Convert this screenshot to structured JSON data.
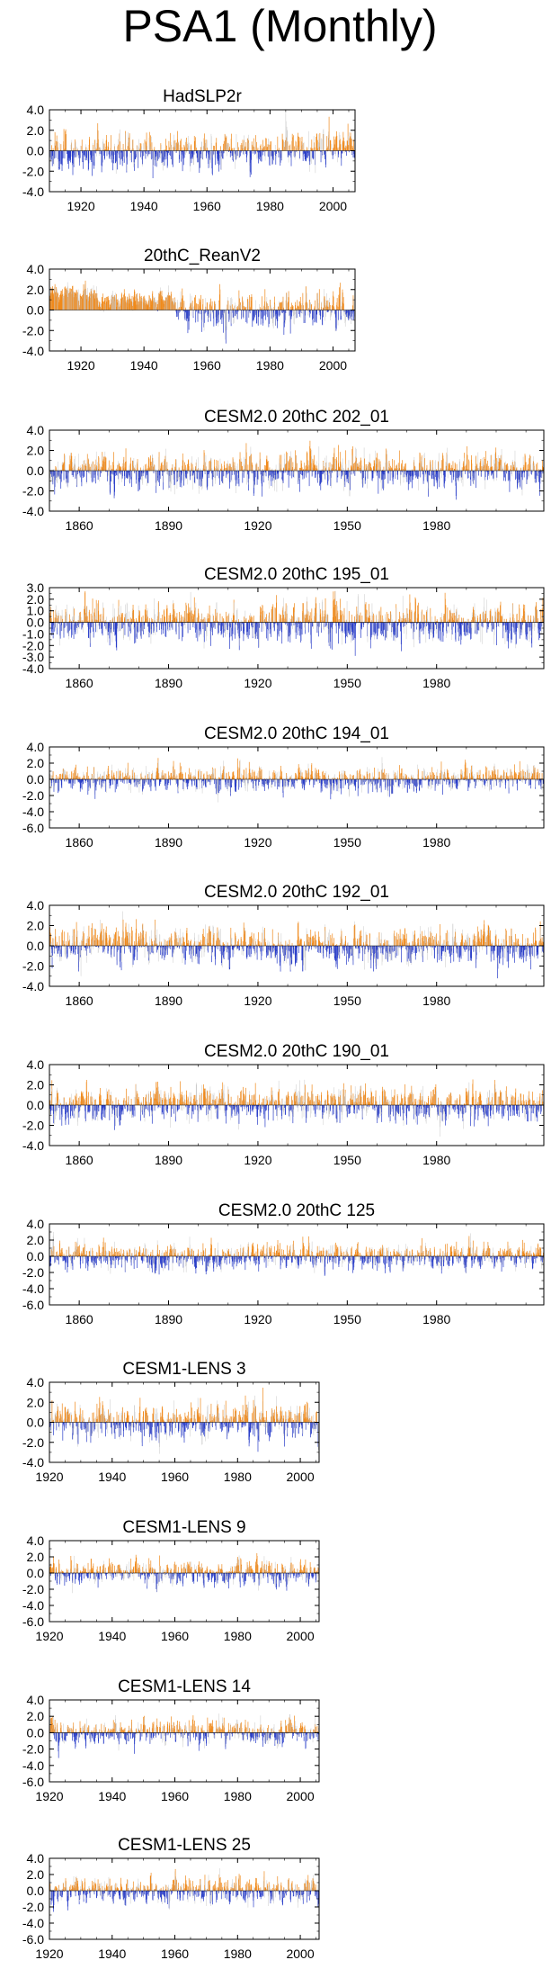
{
  "page_title": "PSA1 (Monthly)",
  "colors": {
    "positive": "#f08a1c",
    "negative": "#2b3fc9",
    "faint": "#c8c8c8",
    "axis": "#000000"
  },
  "chart_data": [
    {
      "type": "bar",
      "title": "HadSLP2r",
      "x_start": 1910,
      "x_end": 2007,
      "xticks": [
        1920,
        1940,
        1960,
        1980,
        2000
      ],
      "ylim": [
        -4,
        4
      ],
      "yticks": [
        "4.0",
        "2.0",
        "0.0",
        "-2.0",
        "-4.0"
      ],
      "positive_color": "#f08a1c",
      "negative_color": "#2b3fc9",
      "seed": 11,
      "amp": 1.0
    },
    {
      "type": "bar",
      "title": "20thC_ReanV2",
      "x_start": 1910,
      "x_end": 2007,
      "xticks": [
        1920,
        1940,
        1960,
        1980,
        2000
      ],
      "ylim": [
        -4,
        4
      ],
      "yticks": [
        "4.0",
        "2.0",
        "0.0",
        "-2.0",
        "-4.0"
      ],
      "positive_color": "#f08a1c",
      "negative_color": "#2b3fc9",
      "seed": 23,
      "amp": 1.0,
      "early_offset": 1.3
    },
    {
      "type": "bar",
      "title": "CESM2.0 20thC 202_01",
      "x_start": 1850,
      "x_end": 2016,
      "xticks": [
        1860,
        1890,
        1920,
        1950,
        1980
      ],
      "ylim": [
        -4,
        4
      ],
      "yticks": [
        "4.0",
        "2.0",
        "0.0",
        "-2.0",
        "-4.0"
      ],
      "positive_color": "#f08a1c",
      "negative_color": "#2b3fc9",
      "seed": 37,
      "amp": 1.0
    },
    {
      "type": "bar",
      "title": "CESM2.0 20thC 195_01",
      "x_start": 1850,
      "x_end": 2016,
      "xticks": [
        1860,
        1890,
        1920,
        1950,
        1980
      ],
      "ylim": [
        -4,
        3
      ],
      "yticks": [
        "3.0",
        "2.0",
        "1.0",
        "0.0",
        "-1.0",
        "-2.0",
        "-3.0",
        "-4.0"
      ],
      "positive_color": "#f08a1c",
      "negative_color": "#2b3fc9",
      "seed": 41,
      "amp": 1.0
    },
    {
      "type": "bar",
      "title": "CESM2.0 20thC 194_01",
      "x_start": 1850,
      "x_end": 2016,
      "xticks": [
        1860,
        1890,
        1920,
        1950,
        1980
      ],
      "ylim": [
        -6,
        4
      ],
      "yticks": [
        "4.0",
        "2.0",
        "0.0",
        "-2.0",
        "-4.0",
        "-6.0"
      ],
      "positive_color": "#f08a1c",
      "negative_color": "#2b3fc9",
      "seed": 53,
      "amp": 0.9
    },
    {
      "type": "bar",
      "title": "CESM2.0 20thC 192_01",
      "x_start": 1850,
      "x_end": 2016,
      "xticks": [
        1860,
        1890,
        1920,
        1950,
        1980
      ],
      "ylim": [
        -4,
        4
      ],
      "yticks": [
        "4.0",
        "2.0",
        "0.0",
        "-2.0",
        "-4.0"
      ],
      "positive_color": "#f08a1c",
      "negative_color": "#2b3fc9",
      "seed": 67,
      "amp": 1.0
    },
    {
      "type": "bar",
      "title": "CESM2.0 20thC 190_01",
      "x_start": 1850,
      "x_end": 2016,
      "xticks": [
        1860,
        1890,
        1920,
        1950,
        1980
      ],
      "ylim": [
        -4,
        4
      ],
      "yticks": [
        "4.0",
        "2.0",
        "0.0",
        "-2.0",
        "-4.0"
      ],
      "positive_color": "#f08a1c",
      "negative_color": "#2b3fc9",
      "seed": 71,
      "amp": 1.0
    },
    {
      "type": "bar",
      "title": "CESM2.0 20thC 125",
      "x_start": 1850,
      "x_end": 2016,
      "xticks": [
        1860,
        1890,
        1920,
        1950,
        1980
      ],
      "ylim": [
        -6,
        4
      ],
      "yticks": [
        "4.0",
        "2.0",
        "0.0",
        "-2.0",
        "-4.0",
        "-6.0"
      ],
      "positive_color": "#f08a1c",
      "negative_color": "#2b3fc9",
      "seed": 83,
      "amp": 0.9
    },
    {
      "type": "bar",
      "title": "CESM1-LENS 3",
      "x_start": 1920,
      "x_end": 2006,
      "xticks": [
        1920,
        1940,
        1960,
        1980,
        2000
      ],
      "ylim": [
        -4,
        4
      ],
      "yticks": [
        "4.0",
        "2.0",
        "0.0",
        "-2.0",
        "-4.0"
      ],
      "positive_color": "#f08a1c",
      "negative_color": "#2b3fc9",
      "seed": 97,
      "amp": 1.05
    },
    {
      "type": "bar",
      "title": "CESM1-LENS 9",
      "x_start": 1920,
      "x_end": 2006,
      "xticks": [
        1920,
        1940,
        1960,
        1980,
        2000
      ],
      "ylim": [
        -6,
        4
      ],
      "yticks": [
        "4.0",
        "2.0",
        "0.0",
        "-2.0",
        "-4.0",
        "-6.0"
      ],
      "positive_color": "#f08a1c",
      "negative_color": "#2b3fc9",
      "seed": 103,
      "amp": 0.9
    },
    {
      "type": "bar",
      "title": "CESM1-LENS 14",
      "x_start": 1920,
      "x_end": 2006,
      "xticks": [
        1920,
        1940,
        1960,
        1980,
        2000
      ],
      "ylim": [
        -6,
        4
      ],
      "yticks": [
        "4.0",
        "2.0",
        "0.0",
        "-2.0",
        "-4.0",
        "-6.0"
      ],
      "positive_color": "#f08a1c",
      "negative_color": "#2b3fc9",
      "seed": 113,
      "amp": 0.9
    },
    {
      "type": "bar",
      "title": "CESM1-LENS 25",
      "x_start": 1920,
      "x_end": 2006,
      "xticks": [
        1920,
        1940,
        1960,
        1980,
        2000
      ],
      "ylim": [
        -6,
        4
      ],
      "yticks": [
        "4.0",
        "2.0",
        "0.0",
        "-2.0",
        "-4.0",
        "-6.0"
      ],
      "positive_color": "#f08a1c",
      "negative_color": "#2b3fc9",
      "seed": 127,
      "amp": 0.9
    }
  ]
}
